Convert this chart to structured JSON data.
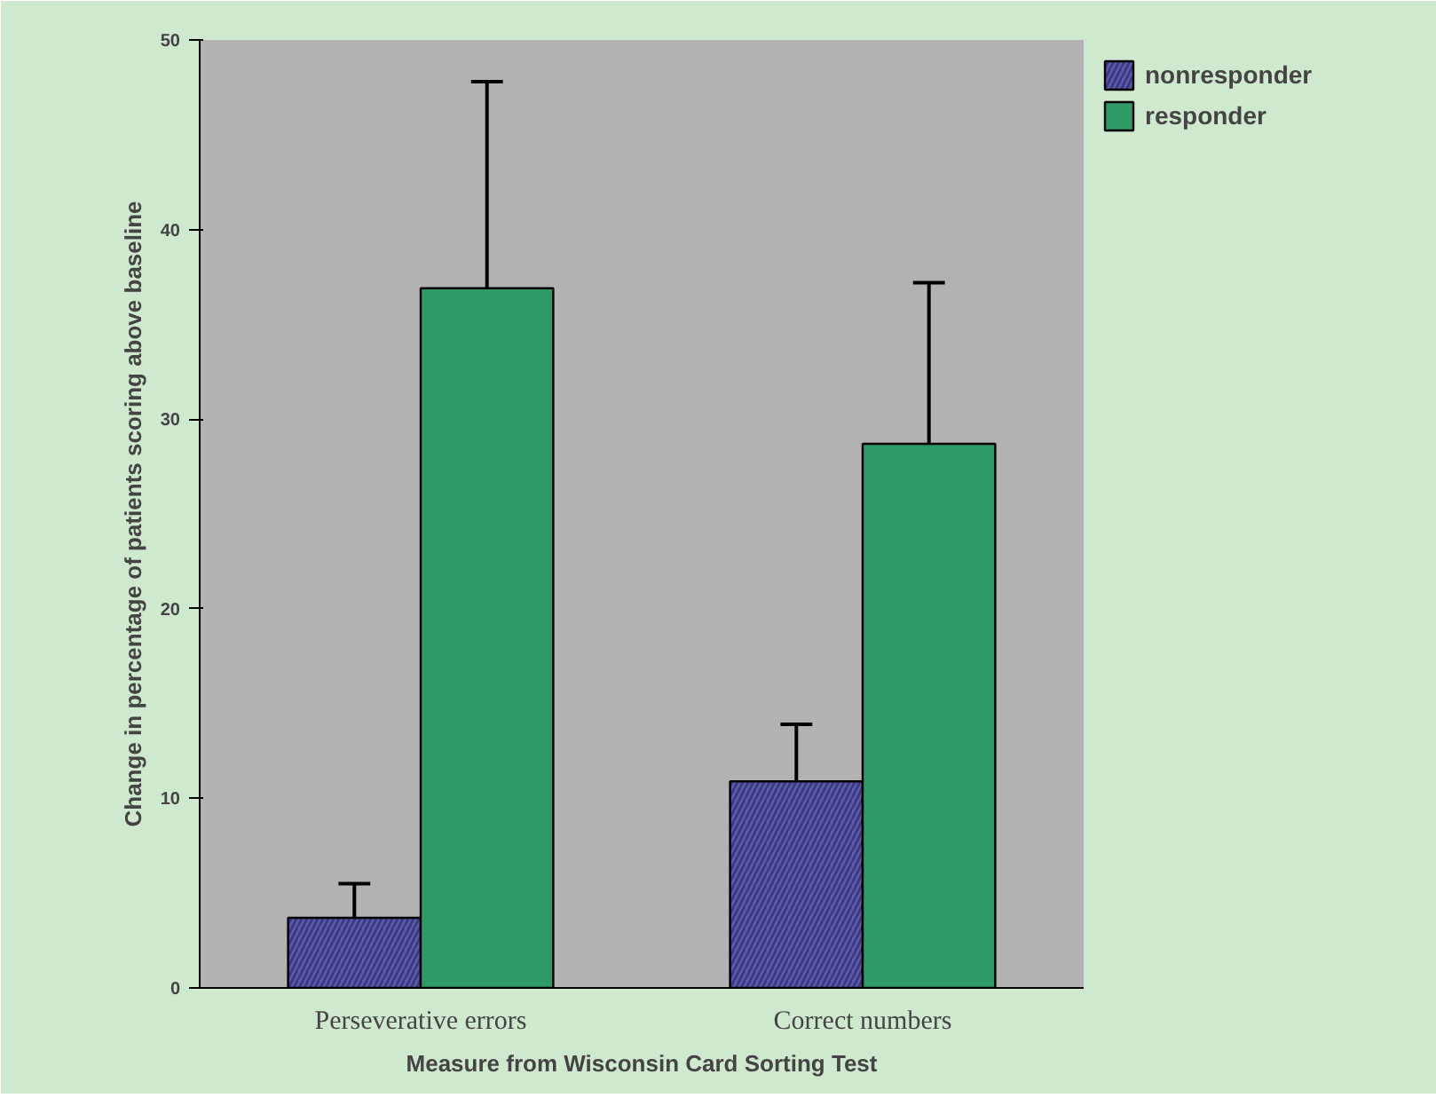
{
  "chart_data": {
    "type": "bar",
    "xlabel": "Measure from Wisconsin Card Sorting Test",
    "ylabel": "Change in percentage of patients scoring above baseline",
    "categories": [
      "Perseverative errors",
      "Correct numbers"
    ],
    "series": [
      {
        "name": "nonresponder",
        "color": "#5c5cae",
        "values": [
          3.7,
          10.9
        ],
        "errors": [
          [
            3.7,
            5.5
          ],
          [
            10.9,
            13.9
          ]
        ]
      },
      {
        "name": "responder",
        "color": "#2e9a66",
        "values": [
          36.9,
          28.7
        ],
        "errors": [
          [
            36.9,
            47.8
          ],
          [
            28.7,
            37.2
          ]
        ]
      }
    ],
    "ylim": [
      0,
      50
    ],
    "yticks": [
      0,
      10,
      20,
      30,
      40,
      50
    ],
    "grid": false,
    "legend": "top right"
  }
}
